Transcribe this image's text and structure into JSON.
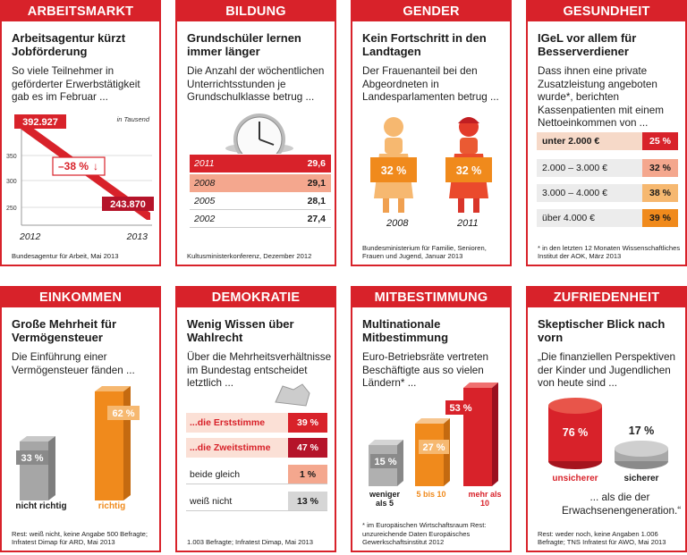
{
  "colors": {
    "red": "#d8222a",
    "darkred": "#b5142a",
    "orange": "#f08a1c",
    "lightorange": "#f6b870",
    "pink": "#f4a78e",
    "gray": "#9c9c9c"
  },
  "c1": {
    "header": "ARBEITSMARKT",
    "title": "Arbeitsagentur kürzt Jobförderung",
    "text": "So viele Teilnehmer in geförderter Erwerbstätigkeit gab es im Februar ...",
    "unit": "in Tausend",
    "value_start": "392.927",
    "value_end": "243.870",
    "change": "–38 %",
    "arrow": "↓",
    "years": [
      "2012",
      "2013"
    ],
    "ticks": [
      "350",
      "300",
      "250"
    ],
    "source": "Bundesagentur für Arbeit, Mai 2013"
  },
  "c2": {
    "header": "BILDUNG",
    "title": "Grundschüler lernen immer länger",
    "text": "Die Anzahl der wöchentlichen Unterrichtsstunden je Grundschulklasse betrug ...",
    "rows": [
      {
        "year": "2011",
        "value": "29,6"
      },
      {
        "year": "2008",
        "value": "29,1"
      },
      {
        "year": "2005",
        "value": "28,1"
      },
      {
        "year": "2002",
        "value": "27,4"
      }
    ],
    "source": "Kultusministerkonferenz, Dezember 2012"
  },
  "c3": {
    "header": "GENDER",
    "title": "Kein Fortschritt in den Landtagen",
    "text": "Der Frauenanteil bei den Abgeordneten in Landesparlamenten betrug ...",
    "values": [
      "32 %",
      "32 %"
    ],
    "years": [
      "2008",
      "2011"
    ],
    "source": "Bundesministerium für Familie, Senioren, Frauen und Jugend, Januar 2013"
  },
  "c4": {
    "header": "GESUNDHEIT",
    "title": "IGeL vor allem für Besserverdiener",
    "text": "Dass ihnen eine private Zusatzleistung angeboten wurde*, berichten Kassenpatienten mit einem Nettoeinkommen von ...",
    "rows": [
      {
        "label": "unter 2.000 €",
        "value": "25 %"
      },
      {
        "label": "2.000 – 3.000 €",
        "value": "32 %"
      },
      {
        "label": "3.000 – 4.000 €",
        "value": "38 %"
      },
      {
        "label": "über 4.000 €",
        "value": "39 %"
      }
    ],
    "source": "* in den letzten 12 Monaten Wissenschaftliches Institut der AOK, März 2013"
  },
  "c5": {
    "header": "EINKOMMEN",
    "title": "Große Mehrheit für Vermögensteuer",
    "text": "Die Einführung einer Vermögensteuer fänden ...",
    "bars": [
      {
        "label": "nicht richtig",
        "value": "33 %"
      },
      {
        "label": "richtig",
        "value": "62 %"
      }
    ],
    "source": "Rest: weiß nicht, keine Angabe 500 Befragte; Infratest Dimap für ARD, Mai 2013"
  },
  "c6": {
    "header": "DEMOKRATIE",
    "title": "Wenig Wissen über Wahlrecht",
    "text": "Über die Mehrheitsverhältnisse im Bundestag entscheidet letztlich ...",
    "rows": [
      {
        "label": "...die Erststimme",
        "value": "39 %"
      },
      {
        "label": "...die Zweitstimme",
        "value": "47 %"
      },
      {
        "label": "beide gleich",
        "value": "1 %"
      },
      {
        "label": "weiß nicht",
        "value": "13 %"
      }
    ],
    "source": "1.003 Befragte; Infratest Dimap, Mai 2013"
  },
  "c7": {
    "header": "MITBESTIMMUNG",
    "title": "Multinationale Mitbestimmung",
    "text": "Euro-Betriebsräte vertreten Beschäftigte aus so vielen Ländern* ...",
    "bars": [
      {
        "label": "weniger als 5",
        "value": "15 %"
      },
      {
        "label": "5 bis 10",
        "value": "27 %"
      },
      {
        "label": "mehr als 10",
        "value": "53 %"
      }
    ],
    "source": "* im Europäischen Wirtschaftsraum Rest: unzureichende Daten Europäisches Gewerkschaftsinstitut 2012"
  },
  "c8": {
    "header": "ZUFRIEDENHEIT",
    "title": "Skeptischer Blick nach vorn",
    "text": "„Die finanziellen Perspektiven der Kinder und Jugendlichen von heute sind ...",
    "cyl": [
      {
        "label": "unsicherer",
        "value": "76 %"
      },
      {
        "label": "sicherer",
        "value": "17 %"
      }
    ],
    "tail": "... als die der Erwachsenengeneration.“",
    "source": "Rest: weder noch, keine Angaben 1.006 Befragte; TNS Infratest für AWO, Mai 2013"
  },
  "chart_data": [
    {
      "type": "line",
      "title": "Arbeitsagentur kürzt Jobförderung",
      "x": [
        "2012",
        "2013"
      ],
      "values": [
        392.927,
        243.87
      ],
      "ylabel": "in Tausend",
      "ylim": [
        225,
        410
      ]
    },
    {
      "type": "table",
      "title": "Grundschüler lernen immer länger",
      "categories": [
        "2011",
        "2008",
        "2005",
        "2002"
      ],
      "values": [
        29.6,
        29.1,
        28.1,
        27.4
      ]
    },
    {
      "type": "bar",
      "title": "Kein Fortschritt in den Landtagen",
      "categories": [
        "2008",
        "2011"
      ],
      "values": [
        32,
        32
      ]
    },
    {
      "type": "bar",
      "title": "IGeL vor allem für Besserverdiener",
      "categories": [
        "unter 2.000 €",
        "2.000 – 3.000 €",
        "3.000 – 4.000 €",
        "über 4.000 €"
      ],
      "values": [
        25,
        32,
        38,
        39
      ]
    },
    {
      "type": "bar",
      "title": "Große Mehrheit für Vermögensteuer",
      "categories": [
        "nicht richtig",
        "richtig"
      ],
      "values": [
        33,
        62
      ]
    },
    {
      "type": "bar",
      "title": "Wenig Wissen über Wahlrecht",
      "categories": [
        "...die Erststimme",
        "...die Zweitstimme",
        "beide gleich",
        "weiß nicht"
      ],
      "values": [
        39,
        47,
        1,
        13
      ]
    },
    {
      "type": "bar",
      "title": "Multinationale Mitbestimmung",
      "categories": [
        "weniger als 5",
        "5 bis 10",
        "mehr als 10"
      ],
      "values": [
        15,
        27,
        53
      ]
    },
    {
      "type": "bar",
      "title": "Skeptischer Blick nach vorn",
      "categories": [
        "unsicherer",
        "sicherer"
      ],
      "values": [
        76,
        17
      ]
    }
  ]
}
